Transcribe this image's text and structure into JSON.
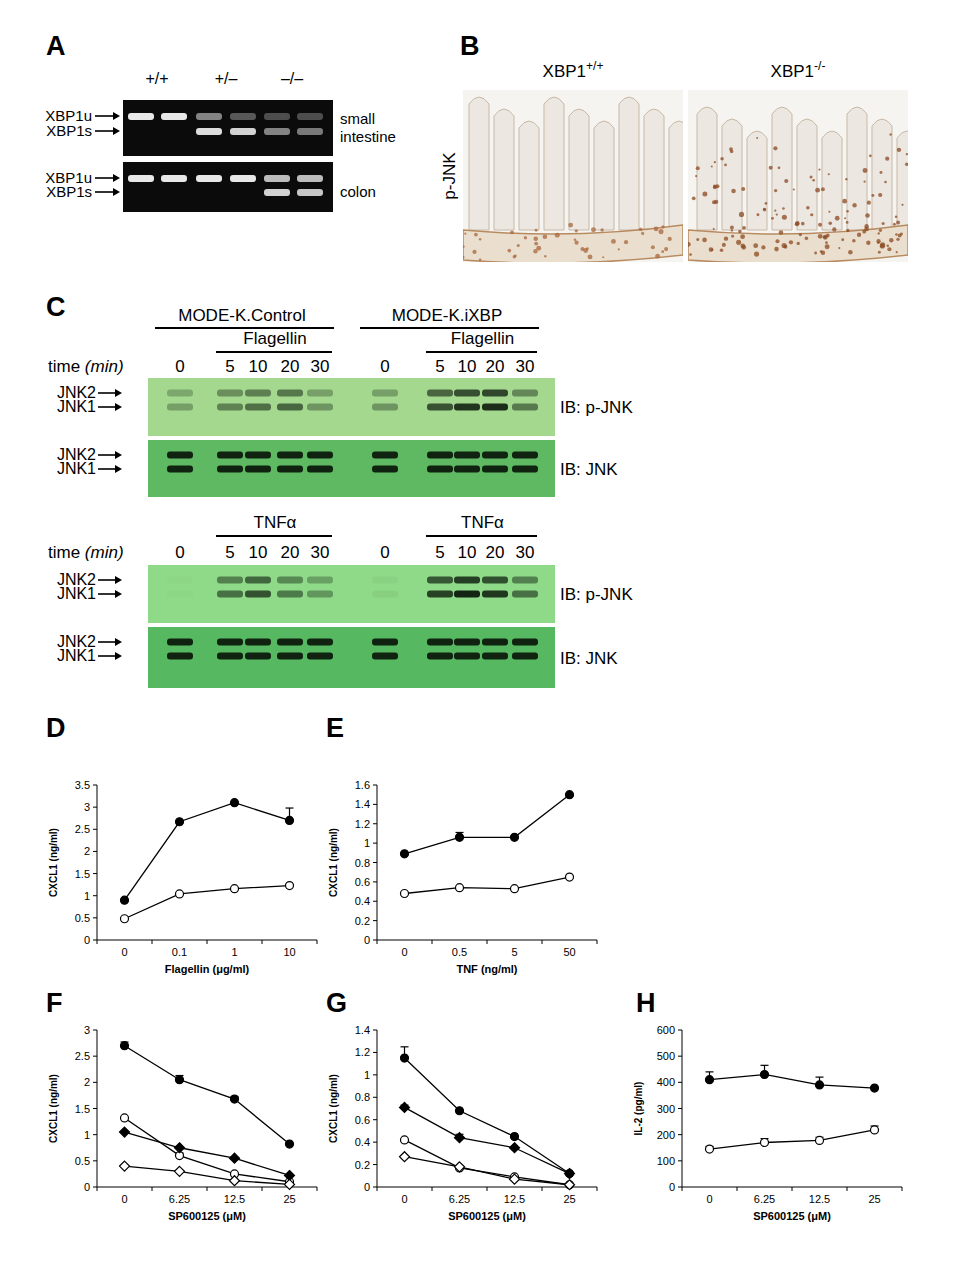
{
  "panel_labels": [
    "A",
    "B",
    "C",
    "D",
    "E",
    "F",
    "G",
    "H"
  ],
  "panels": {
    "A": {
      "genotypes": [
        "+/+",
        "+/–",
        "–/–"
      ],
      "gels": [
        {
          "bands": [
            "XBP1u",
            "XBP1s"
          ],
          "tissue": [
            "small",
            "intestine"
          ]
        },
        {
          "bands": [
            "XBP1u",
            "XBP1s"
          ],
          "tissue": [
            "colon"
          ]
        }
      ]
    },
    "B": {
      "row_label": "p-JNK",
      "images": [
        {
          "title": "XBP1",
          "genotype": "+/+"
        },
        {
          "title": "XBP1",
          "genotype": "-/-"
        }
      ]
    },
    "C": {
      "groups": [
        "MODE-K.Control",
        "MODE-K.iXBP"
      ],
      "time_label": "time",
      "time_unit": "(min)",
      "blocks": [
        {
          "stimulus": "Flagellin",
          "times": [
            0,
            5,
            10,
            20,
            30
          ]
        },
        {
          "stimulus": "TNFα",
          "times": [
            0,
            5,
            10,
            20,
            30
          ]
        }
      ],
      "bands": [
        "JNK2",
        "JNK1"
      ],
      "blots": [
        "IB: p-JNK",
        "IB: JNK"
      ]
    }
  },
  "chart_data": [
    {
      "type": "line",
      "categories": [
        "0",
        "0.1",
        "1",
        "10"
      ],
      "xlabel": "Flagellin (μg/ml)",
      "ylabel": "CXCL1 (ng/ml)",
      "ylim": [
        0,
        3.5
      ],
      "yticks": [
        0,
        0.5,
        1,
        1.5,
        2,
        2.5,
        3,
        3.5
      ],
      "series": [
        {
          "color": "#000000",
          "marker": "circle",
          "values": [
            0.9,
            2.67,
            3.1,
            2.7
          ],
          "errors": [
            null,
            null,
            null,
            0.28
          ]
        },
        {
          "color": "#000000",
          "marker": "open-circle",
          "values": [
            0.48,
            1.04,
            1.16,
            1.23
          ],
          "errors": [
            null,
            null,
            null,
            null
          ]
        }
      ]
    },
    {
      "type": "line",
      "categories": [
        "0",
        "0.5",
        "5",
        "50"
      ],
      "xlabel": "TNF (ng/ml)",
      "ylabel": "CXCL1 (ng/ml)",
      "ylim": [
        0,
        1.6
      ],
      "yticks": [
        0,
        0.2,
        0.4,
        0.6,
        0.8,
        1,
        1.2,
        1.4,
        1.6
      ],
      "series": [
        {
          "color": "#000000",
          "marker": "circle",
          "values": [
            0.89,
            1.06,
            1.06,
            1.5
          ],
          "errors": [
            null,
            0.05,
            null,
            null
          ]
        },
        {
          "color": "#000000",
          "marker": "open-circle",
          "values": [
            0.48,
            0.54,
            0.53,
            0.65
          ],
          "errors": [
            null,
            null,
            null,
            null
          ]
        }
      ]
    },
    {
      "type": "line",
      "categories": [
        "0",
        "6.25",
        "12.5",
        "25"
      ],
      "xlabel": "SP600125 (μM)",
      "ylabel": "CXCL1 (ng/ml)",
      "ylim": [
        0,
        3
      ],
      "yticks": [
        0,
        0.5,
        1,
        1.5,
        2,
        2.5,
        3
      ],
      "series": [
        {
          "color": "#000000",
          "marker": "circle",
          "values": [
            2.7,
            2.05,
            1.68,
            0.82
          ],
          "errors": [
            0.07,
            0.08,
            0.05,
            null
          ]
        },
        {
          "color": "#000000",
          "marker": "open-circle",
          "values": [
            1.32,
            0.6,
            0.25,
            0.1
          ],
          "errors": [
            null,
            0.05,
            null,
            null
          ]
        },
        {
          "color": "#000000",
          "marker": "diamond",
          "values": [
            1.05,
            0.75,
            0.55,
            0.22
          ],
          "errors": [
            null,
            null,
            null,
            null
          ]
        },
        {
          "color": "#000000",
          "marker": "open-diamond",
          "values": [
            0.4,
            0.3,
            0.12,
            0.05
          ],
          "errors": [
            null,
            null,
            null,
            null
          ]
        }
      ]
    },
    {
      "type": "line",
      "categories": [
        "0",
        "6.25",
        "12.5",
        "25"
      ],
      "xlabel": "SP600125 (μM)",
      "ylabel": "CXCL1 (ng/ml)",
      "ylim": [
        0,
        1.4
      ],
      "yticks": [
        0,
        0.2,
        0.4,
        0.6,
        0.8,
        1,
        1.2,
        1.4
      ],
      "series": [
        {
          "color": "#000000",
          "marker": "circle",
          "values": [
            1.15,
            0.68,
            0.45,
            0.12
          ],
          "errors": [
            0.1,
            null,
            null,
            null
          ]
        },
        {
          "color": "#000000",
          "marker": "diamond",
          "values": [
            0.71,
            0.44,
            0.35,
            0.12
          ],
          "errors": [
            0.02,
            0.03,
            null,
            null
          ]
        },
        {
          "color": "#000000",
          "marker": "open-circle",
          "values": [
            0.42,
            0.17,
            0.09,
            0.02
          ],
          "errors": [
            null,
            null,
            null,
            null
          ]
        },
        {
          "color": "#000000",
          "marker": "open-diamond",
          "values": [
            0.27,
            0.18,
            0.07,
            0.02
          ],
          "errors": [
            null,
            null,
            null,
            null
          ]
        }
      ]
    },
    {
      "type": "line",
      "categories": [
        "0",
        "6.25",
        "12.5",
        "25"
      ],
      "xlabel": "SP600125 (μM)",
      "ylabel": "IL-2 (pg/ml)",
      "ylim": [
        0,
        600
      ],
      "yticks": [
        0,
        100,
        200,
        300,
        400,
        500,
        600
      ],
      "series": [
        {
          "color": "#000000",
          "marker": "circle",
          "values": [
            410,
            430,
            390,
            378
          ],
          "errors": [
            30,
            35,
            30,
            null
          ]
        },
        {
          "color": "#000000",
          "marker": "open-circle",
          "values": [
            145,
            170,
            178,
            218
          ],
          "errors": [
            10,
            15,
            12,
            15
          ]
        }
      ]
    }
  ]
}
